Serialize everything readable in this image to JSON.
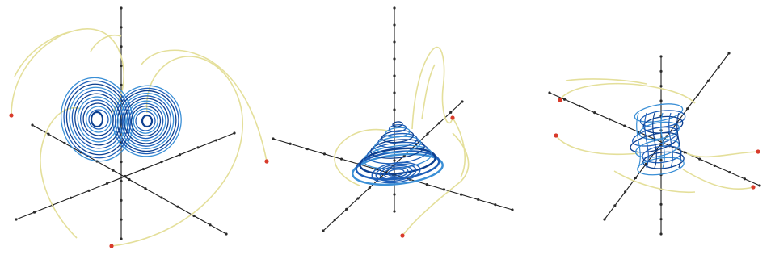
{
  "colors": {
    "background": "#ffffff",
    "axis": "#1e1e1e",
    "axis_tick": "#2a2a2a",
    "transient_trajectory": "#e4df9a",
    "attractor_outer": "#3a8fd6",
    "attractor_inner": "#1f5fb8",
    "attractor_core": "#0d3f8f",
    "initial_point": "#d83a2a"
  },
  "panels": [
    {
      "id": "butterfly",
      "shape": "two-lobed attractor",
      "axis_count": 3
    },
    {
      "id": "cone",
      "shape": "conical attractor",
      "axis_count": 3
    },
    {
      "id": "cylinder",
      "shape": "cylindrical attractor",
      "axis_count": 3
    }
  ]
}
